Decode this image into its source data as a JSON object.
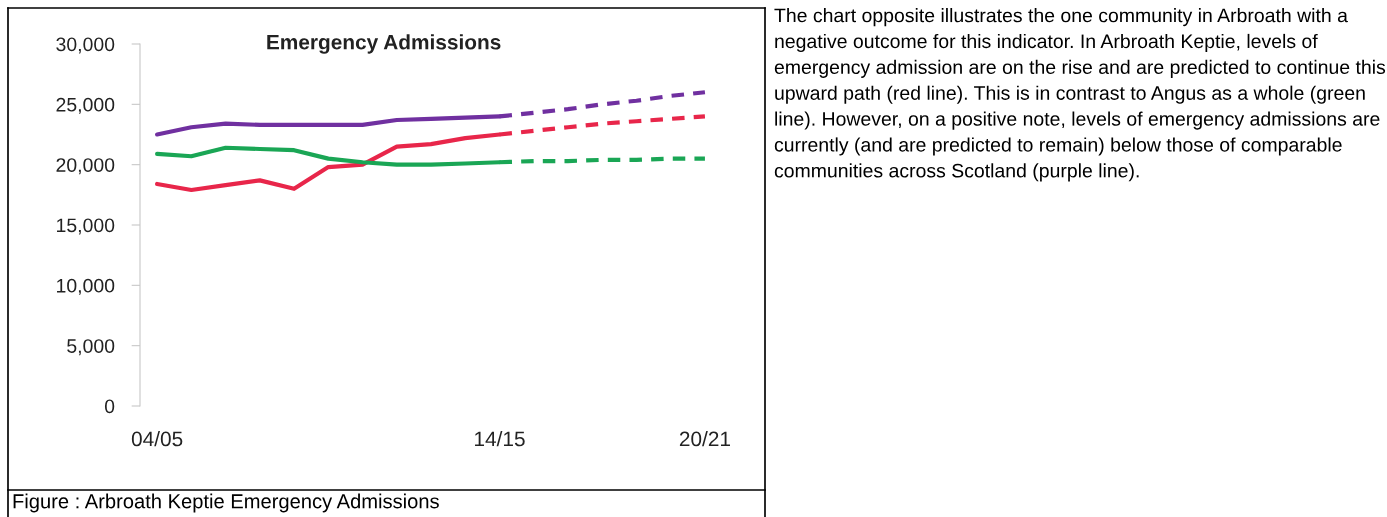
{
  "chart_data": {
    "type": "line",
    "title": "Emergency Admissions",
    "categories": [
      "04/05",
      null,
      null,
      null,
      null,
      null,
      null,
      null,
      null,
      null,
      "14/15",
      null,
      null,
      null,
      null,
      null,
      "20/21"
    ],
    "series": [
      {
        "color": "#7030a0",
        "line_style": "solid",
        "values": [
          22500,
          23100,
          23400,
          23300,
          23300,
          23300,
          23300,
          23700,
          23800,
          23900,
          24000,
          null,
          null,
          null,
          null,
          null,
          null
        ]
      },
      {
        "color": "#7030a0",
        "line_style": "dashed",
        "values": [
          null,
          null,
          null,
          null,
          null,
          null,
          null,
          null,
          null,
          null,
          24000,
          24300,
          24600,
          25000,
          25300,
          25700,
          26000
        ]
      },
      {
        "color": "#e8264a",
        "line_style": "solid",
        "values": [
          18400,
          17900,
          18300,
          18700,
          18000,
          19800,
          20000,
          21500,
          21700,
          22200,
          22500,
          null,
          null,
          null,
          null,
          null,
          null
        ]
      },
      {
        "color": "#e8264a",
        "line_style": "dashed",
        "values": [
          null,
          null,
          null,
          null,
          null,
          null,
          null,
          null,
          null,
          null,
          22500,
          22800,
          23100,
          23400,
          23600,
          23800,
          24000
        ]
      },
      {
        "color": "#1aa655",
        "line_style": "solid",
        "values": [
          20900,
          20700,
          21400,
          21300,
          21200,
          20500,
          20200,
          20000,
          20000,
          20100,
          20200,
          null,
          null,
          null,
          null,
          null,
          null
        ]
      },
      {
        "color": "#1aa655",
        "line_style": "dashed",
        "values": [
          null,
          null,
          null,
          null,
          null,
          null,
          null,
          null,
          null,
          null,
          20200,
          20300,
          20300,
          20400,
          20400,
          20500,
          20500
        ]
      }
    ],
    "ylim": [
      0,
      30000
    ],
    "yticks": [
      {
        "value": 0,
        "label": "0"
      },
      {
        "value": 5000,
        "label": "5,000"
      },
      {
        "value": 10000,
        "label": "10,000"
      },
      {
        "value": 15000,
        "label": "15,000"
      },
      {
        "value": 20000,
        "label": "20,000"
      },
      {
        "value": 25000,
        "label": "25,000"
      },
      {
        "value": 30000,
        "label": "30,000"
      }
    ],
    "grid": false,
    "marker": "none",
    "annotations": [
      "Figure : Arbroath Keptie Emergency Admissions",
      "The chart opposite illustrates the one community in Arbroath with a negative outcome for this indicator. In Arbroath Keptie, levels of emergency admission are on the rise and are predicted to continue this upward path (red line). This is in contrast to Angus as a whole (green line). However, on a positive note, levels of emergency admissions are currently (and are predicted to remain) below those of comparable communities across Scotland (purple line)."
    ]
  }
}
